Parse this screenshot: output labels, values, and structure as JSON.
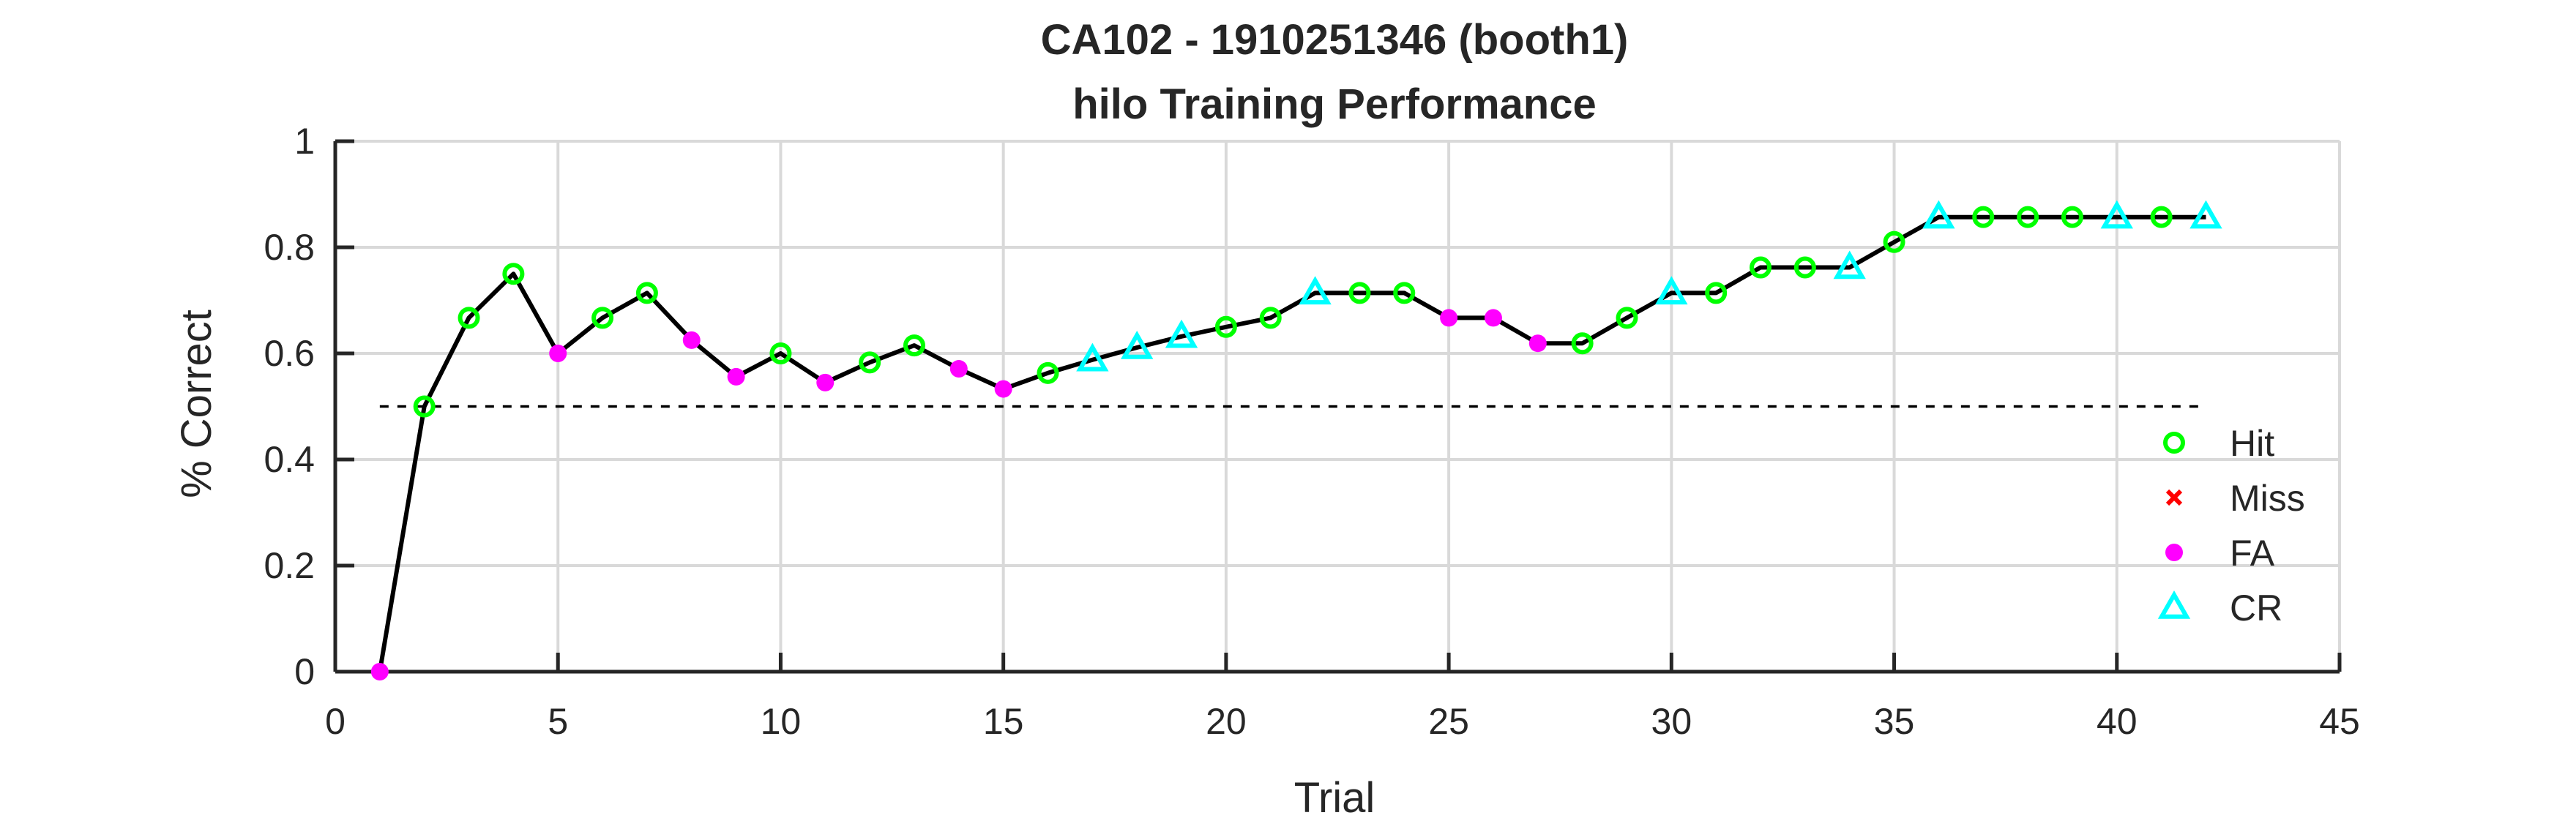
{
  "chart_data": {
    "type": "line",
    "title": "CA102 - 1910251346 (booth1)",
    "subtitle": "hilo Training Performance",
    "xlabel": "Trial",
    "ylabel": "% Correct",
    "xlim": [
      0,
      45
    ],
    "ylim": [
      0,
      1
    ],
    "xticks": [
      "0",
      "5",
      "10",
      "15",
      "20",
      "25",
      "30",
      "35",
      "40",
      "45"
    ],
    "yticks": [
      "0",
      "0.2",
      "0.4",
      "0.6",
      "0.8",
      "1"
    ],
    "grid": true,
    "legend_position": "bottom-right",
    "chance_line": {
      "y": 0.5,
      "x": [
        1,
        42
      ],
      "style": "dashed"
    },
    "line_color": "#000000",
    "legend": [
      {
        "key": "Hit",
        "label": "Hit",
        "marker": "circle-open",
        "color": "#00ff00"
      },
      {
        "key": "Miss",
        "label": "Miss",
        "marker": "x",
        "color": "#ff0000"
      },
      {
        "key": "FA",
        "label": "FA",
        "marker": "dot",
        "color": "#ff00ff"
      },
      {
        "key": "CR",
        "label": "CR",
        "marker": "triangle-open",
        "color": "#00ffff"
      }
    ],
    "x": [
      1,
      2,
      3,
      4,
      5,
      6,
      7,
      8,
      9,
      10,
      11,
      12,
      13,
      14,
      15,
      16,
      17,
      18,
      19,
      20,
      21,
      22,
      23,
      24,
      25,
      26,
      27,
      28,
      29,
      30,
      31,
      32,
      33,
      34,
      35,
      36,
      37,
      38,
      39,
      40,
      41,
      42
    ],
    "y": [
      0,
      0.5,
      0.667,
      0.75,
      0.6,
      0.667,
      0.714,
      0.625,
      0.556,
      0.6,
      0.545,
      0.583,
      0.615,
      0.571,
      0.533,
      0.563,
      0.588,
      0.611,
      0.632,
      0.65,
      0.667,
      0.714,
      0.714,
      0.714,
      0.667,
      0.667,
      0.619,
      0.619,
      0.667,
      0.714,
      0.714,
      0.762,
      0.762,
      0.762,
      0.81,
      0.857,
      0.857,
      0.857,
      0.857,
      0.857,
      0.857,
      0.857
    ],
    "outcomes": [
      "FA",
      "Hit",
      "Hit",
      "Hit",
      "FA",
      "Hit",
      "Hit",
      "FA",
      "FA",
      "Hit",
      "FA",
      "Hit",
      "Hit",
      "FA",
      "FA",
      "Hit",
      "CR",
      "CR",
      "CR",
      "Hit",
      "Hit",
      "CR",
      "Hit",
      "Hit",
      "FA",
      "FA",
      "FA",
      "Hit",
      "Hit",
      "CR",
      "Hit",
      "Hit",
      "Hit",
      "CR",
      "Hit",
      "CR",
      "Hit",
      "Hit",
      "Hit",
      "CR",
      "Hit",
      "CR"
    ]
  }
}
